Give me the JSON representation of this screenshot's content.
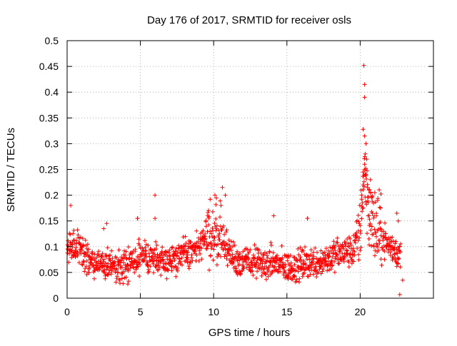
{
  "chart_data": {
    "type": "scatter",
    "title": "Day 176 of 2017, SRMTID for receiver osls",
    "xlabel": "GPS time / hours",
    "ylabel": "SRMTID / TECUs",
    "xlim": [
      0,
      25
    ],
    "ylim": [
      0,
      0.5
    ],
    "x_ticks": [
      0,
      5,
      10,
      15,
      20
    ],
    "x_tick_labels": [
      "0",
      "5",
      "10",
      "15",
      "20"
    ],
    "y_ticks": [
      0,
      0.05,
      0.1,
      0.15,
      0.2,
      0.25,
      0.3,
      0.35,
      0.4,
      0.45,
      0.5
    ],
    "y_tick_labels": [
      "0",
      "0.05",
      "0.1",
      "0.15",
      "0.2",
      "0.25",
      "0.3",
      "0.35",
      "0.4",
      "0.45",
      "0.5"
    ],
    "grid": true,
    "marker": "+",
    "marker_color": "#ff0000",
    "series": [
      {
        "name": "SRMTID",
        "x_start": 0.0,
        "x_step": 0.05,
        "envelope_hours": [
          0,
          0.5,
          1,
          1.5,
          2,
          2.5,
          3,
          3.5,
          4,
          4.5,
          5,
          5.5,
          6,
          6.5,
          7,
          7.5,
          8,
          8.5,
          9,
          9.5,
          10,
          10.5,
          11,
          11.5,
          12,
          12.5,
          13,
          13.5,
          14,
          14.5,
          15,
          15.5,
          16,
          16.5,
          17,
          17.5,
          18,
          18.5,
          19,
          19.5,
          20,
          20.3,
          20.6,
          21,
          21.5,
          22,
          22.5,
          22.8
        ],
        "envelope_mean": [
          0.09,
          0.1,
          0.09,
          0.07,
          0.07,
          0.065,
          0.06,
          0.06,
          0.065,
          0.07,
          0.075,
          0.08,
          0.08,
          0.075,
          0.075,
          0.08,
          0.085,
          0.09,
          0.1,
          0.12,
          0.13,
          0.12,
          0.09,
          0.075,
          0.07,
          0.07,
          0.07,
          0.065,
          0.07,
          0.065,
          0.06,
          0.06,
          0.065,
          0.07,
          0.07,
          0.075,
          0.08,
          0.085,
          0.09,
          0.09,
          0.14,
          0.25,
          0.17,
          0.13,
          0.12,
          0.1,
          0.09,
          0.08
        ],
        "noise_amplitude": 0.025,
        "points": [
          [
            0.25,
            0.18
          ],
          [
            6.0,
            0.2
          ],
          [
            6.0,
            0.155
          ],
          [
            10.6,
            0.215
          ],
          [
            10.8,
            0.2
          ],
          [
            10.5,
            0.18
          ],
          [
            14.1,
            0.16
          ],
          [
            16.4,
            0.155
          ],
          [
            20.25,
            0.452
          ],
          [
            20.3,
            0.415
          ],
          [
            20.3,
            0.39
          ],
          [
            20.2,
            0.328
          ],
          [
            20.3,
            0.315
          ],
          [
            20.4,
            0.3
          ],
          [
            20.35,
            0.28
          ],
          [
            20.45,
            0.27
          ],
          [
            20.3,
            0.26
          ],
          [
            20.2,
            0.245
          ],
          [
            20.4,
            0.24
          ],
          [
            20.2,
            0.22
          ],
          [
            20.5,
            0.215
          ],
          [
            20.6,
            0.21
          ],
          [
            20.7,
            0.23
          ],
          [
            20.1,
            0.2
          ],
          [
            20.8,
            0.195
          ],
          [
            21.0,
            0.205
          ],
          [
            21.2,
            0.19
          ],
          [
            21.4,
            0.175
          ],
          [
            21.1,
            0.16
          ],
          [
            22.5,
            0.165
          ],
          [
            22.6,
            0.15
          ],
          [
            22.7,
            0.007
          ],
          [
            22.9,
            0.035
          ],
          [
            2.7,
            0.145
          ],
          [
            2.5,
            0.135
          ],
          [
            4.8,
            0.155
          ]
        ]
      }
    ]
  }
}
